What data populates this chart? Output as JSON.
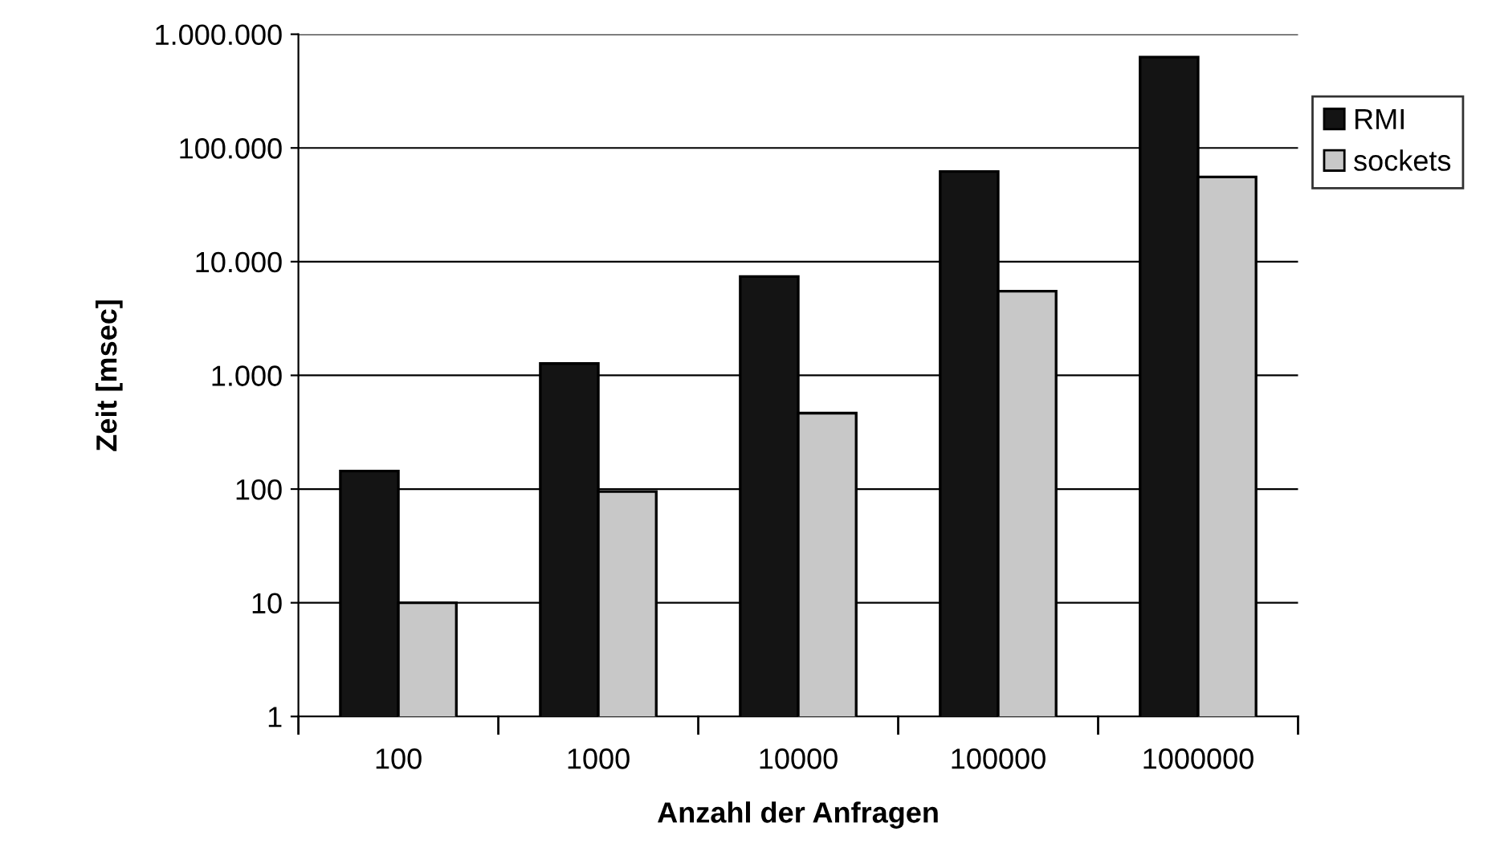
{
  "chart_data": {
    "type": "bar",
    "xlabel": "Anzahl der Anfragen",
    "ylabel": "Zeit [msec]",
    "categories": [
      "100",
      "1000",
      "10000",
      "100000",
      "1000000"
    ],
    "series": [
      {
        "name": "RMI",
        "color": "#141414",
        "values": [
          144,
          1270,
          7400,
          62000,
          630000
        ]
      },
      {
        "name": "sockets",
        "color": "#c8c8c8",
        "values": [
          10,
          95,
          465,
          5500,
          55500
        ]
      }
    ],
    "log": "y",
    "ylim": [
      1,
      1000000
    ],
    "yticks": [
      1,
      10,
      100,
      {
        "value": 1000,
        "label": "1.000"
      },
      {
        "value": 10000,
        "label": "10.000"
      },
      {
        "value": 100000,
        "label": "100.000"
      },
      {
        "value": 1000000,
        "label": "1.000.000"
      }
    ],
    "grid": "y",
    "legend": "right"
  }
}
